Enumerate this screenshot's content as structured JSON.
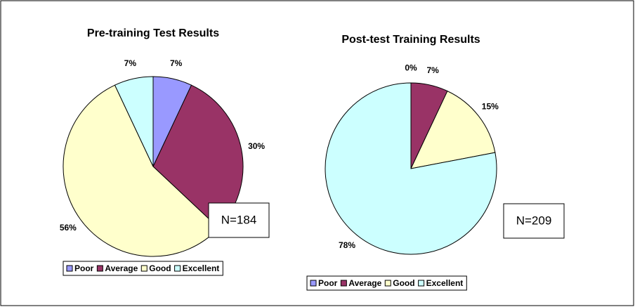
{
  "chart_data": [
    {
      "type": "pie",
      "title": "Pre-training Test Results",
      "categories": [
        "Poor",
        "Average",
        "Good",
        "Excellent"
      ],
      "values": [
        7,
        30,
        56,
        7
      ],
      "value_labels": [
        "7%",
        "30%",
        "56%",
        "7%"
      ],
      "colors": [
        "#9999ff",
        "#993366",
        "#ffffcc",
        "#ccffff"
      ],
      "annotation": "N=184",
      "legend": "bottom"
    },
    {
      "type": "pie",
      "title": "Post-test Training Results",
      "categories": [
        "Poor",
        "Average",
        "Good",
        "Excellent"
      ],
      "values": [
        0,
        7,
        15,
        78
      ],
      "value_labels": [
        "0%",
        "7%",
        "15%",
        "78%"
      ],
      "colors": [
        "#9999ff",
        "#993366",
        "#ffffcc",
        "#ccffff"
      ],
      "annotation": "N=209",
      "legend": "bottom"
    }
  ]
}
